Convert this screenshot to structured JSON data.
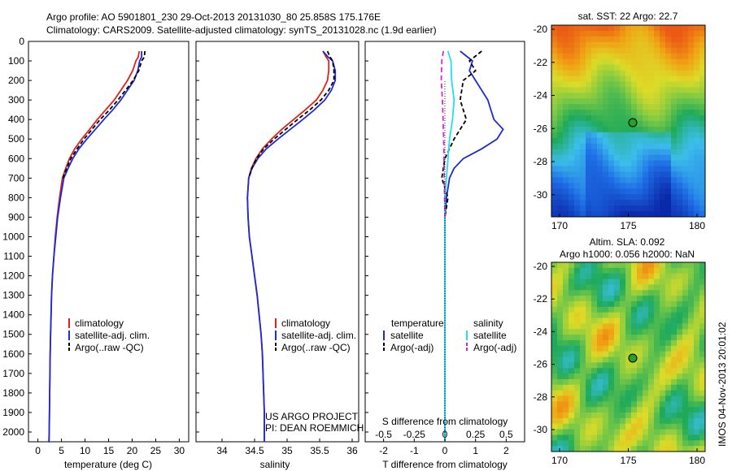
{
  "header": {
    "line1": "Argo profile: AO 5901801_230 29-Oct-2013 20131030_80 25.858S 175.176E",
    "line2": "Climatology: CARS2009. Satellite-adjusted climatology: synTS_20131028.nc (1.9d earlier)"
  },
  "colors": {
    "clim": "#e0201c",
    "sat": "#1c2bd6",
    "argo": "#000000",
    "sat_s": "#20e0e8",
    "argo_s": "#e020e0"
  },
  "depth_ticks": [
    "0",
    "100",
    "200",
    "300",
    "400",
    "500",
    "600",
    "700",
    "800",
    "900",
    "1000",
    "1100",
    "1200",
    "1300",
    "1400",
    "1500",
    "1600",
    "1700",
    "1800",
    "1900",
    "2000"
  ],
  "panels": {
    "temperature": {
      "xlabel": "temperature (deg C)",
      "xticks": [
        "0",
        "5",
        "10",
        "15",
        "20",
        "25",
        "30"
      ],
      "legend": [
        "climatology",
        "satellite-adj. clim.",
        "Argo(..raw -QC)"
      ]
    },
    "salinity": {
      "xlabel": "salinity",
      "xticks": [
        "34",
        "34.5",
        "35",
        "35.5",
        "36"
      ],
      "legend": [
        "climatology",
        "satellite-adj. clim.",
        "Argo(..raw -QC)"
      ],
      "credit1": "US ARGO PROJECT",
      "credit2": "PI: DEAN ROEMMICH"
    },
    "difference": {
      "s_label": "S difference from climatology",
      "t_label": "T difference from climatology",
      "s_ticks": [
        "-0.5",
        "-0.25",
        "0",
        "0.25",
        "0.5"
      ],
      "t_ticks": [
        "-2",
        "-1",
        "0",
        "1",
        "2"
      ],
      "legend_t_title": "temperature",
      "legend_s_title": "salinity",
      "legend_t": [
        "satellite",
        "Argo(-adj)"
      ],
      "legend_s": [
        "satellite",
        "Argo(-adj)"
      ]
    }
  },
  "maps": {
    "sst_title": "sat. SST: 22  Argo: 22.7",
    "sla_title1": "Altim. SLA: 0.092",
    "sla_title2": "Argo h1000: 0.056 h2000: NaN",
    "yticks": [
      "-20",
      "-22",
      "-24",
      "-26",
      "-28",
      "-30"
    ],
    "xticks": [
      "170",
      "175",
      "180"
    ],
    "watermark": "IMOS 04-Nov-2013 20:01:02"
  },
  "chart_data": [
    {
      "type": "line",
      "name": "temperature profile",
      "xlabel": "temperature (deg C)",
      "ylabel": "",
      "xlim": [
        -2,
        32
      ],
      "ylim": [
        2050,
        0
      ],
      "series": [
        {
          "name": "climatology",
          "x": [
            21.5,
            21.3,
            20.8,
            20.1,
            19.0,
            17.6,
            16.2,
            14.4,
            12.6,
            11.0,
            9.3,
            7.8,
            6.7,
            5.9,
            5.2,
            4.6,
            4.1,
            3.7,
            3.4,
            3.1,
            2.9,
            2.8,
            2.7,
            2.6,
            2.55,
            2.5,
            2.45,
            2.4,
            2.35,
            2.3
          ],
          "y": [
            50,
            80,
            100,
            150,
            200,
            250,
            300,
            350,
            400,
            450,
            500,
            550,
            600,
            650,
            700,
            800,
            900,
            1000,
            1100,
            1200,
            1300,
            1400,
            1500,
            1600,
            1700,
            1800,
            1900,
            2000,
            2050,
            2050
          ]
        },
        {
          "name": "satellite-adj. clim.",
          "x": [
            22.0,
            22.0,
            21.6,
            21.2,
            20.4,
            19.0,
            17.6,
            15.9,
            14.0,
            12.2,
            10.4,
            8.7,
            7.4,
            6.4,
            5.5,
            4.8,
            4.2,
            3.8,
            3.4,
            3.1,
            2.9,
            2.8,
            2.7,
            2.6,
            2.55,
            2.5,
            2.45,
            2.4,
            2.35,
            2.3
          ],
          "y": [
            50,
            80,
            100,
            150,
            200,
            250,
            300,
            350,
            400,
            450,
            500,
            550,
            600,
            650,
            700,
            800,
            900,
            1000,
            1100,
            1200,
            1300,
            1400,
            1500,
            1600,
            1700,
            1800,
            1900,
            2000,
            2050,
            2050
          ]
        },
        {
          "name": "Argo(..raw -QC)",
          "x": [
            22.7,
            22.6,
            22.0,
            21.4,
            20.2,
            18.6,
            17.0,
            15.2,
            13.2,
            11.5,
            9.8,
            8.3,
            7.0,
            6.1,
            5.3
          ],
          "y": [
            50,
            80,
            100,
            150,
            200,
            250,
            300,
            350,
            400,
            450,
            500,
            550,
            600,
            650,
            700
          ]
        }
      ]
    },
    {
      "type": "line",
      "name": "salinity profile",
      "xlabel": "salinity",
      "xlim": [
        33.6,
        36.1
      ],
      "ylim": [
        2050,
        0
      ],
      "series": [
        {
          "name": "climatology",
          "x": [
            35.55,
            35.6,
            35.64,
            35.64,
            35.62,
            35.55,
            35.45,
            35.28,
            35.1,
            34.92,
            34.76,
            34.62,
            34.52,
            34.45,
            34.41,
            34.39,
            34.4,
            34.42,
            34.46,
            34.5,
            34.54,
            34.57,
            34.6,
            34.62,
            34.63,
            34.64,
            34.65,
            34.65
          ],
          "y": [
            50,
            80,
            100,
            150,
            200,
            250,
            300,
            350,
            400,
            450,
            500,
            550,
            600,
            650,
            700,
            800,
            900,
            1000,
            1100,
            1200,
            1300,
            1400,
            1500,
            1600,
            1700,
            1800,
            1900,
            2050
          ]
        },
        {
          "name": "satellite-adj. clim.",
          "x": [
            35.55,
            35.63,
            35.7,
            35.74,
            35.74,
            35.68,
            35.58,
            35.42,
            35.24,
            35.05,
            34.86,
            34.68,
            34.55,
            34.46,
            34.41,
            34.39,
            34.4,
            34.42,
            34.46,
            34.5,
            34.54,
            34.57,
            34.6,
            34.62,
            34.63,
            34.64,
            34.65,
            34.65
          ],
          "y": [
            50,
            80,
            100,
            150,
            200,
            250,
            300,
            350,
            400,
            450,
            500,
            550,
            600,
            650,
            700,
            800,
            900,
            1000,
            1100,
            1200,
            1300,
            1400,
            1500,
            1600,
            1700,
            1800,
            1900,
            2050
          ]
        },
        {
          "name": "Argo(..raw -QC)",
          "x": [
            35.62,
            35.66,
            35.7,
            35.72,
            35.72,
            35.64,
            35.52,
            35.35,
            35.16,
            34.98,
            34.8,
            34.64,
            34.53,
            34.46,
            34.41
          ],
          "y": [
            50,
            80,
            100,
            150,
            200,
            250,
            300,
            350,
            400,
            450,
            500,
            550,
            600,
            650,
            700
          ]
        }
      ]
    },
    {
      "type": "line",
      "name": "difference from climatology",
      "xlabel": "T difference from climatology",
      "xlim": [
        -2.6,
        2.6
      ],
      "ylim": [
        2050,
        0
      ],
      "series": [
        {
          "name": "temperature satellite",
          "x": [
            0.5,
            0.9,
            0.8,
            1.0,
            1.4,
            1.5,
            1.6,
            1.9,
            1.7,
            1.2,
            0.6,
            0.3,
            0.15,
            0.05,
            0.0,
            0.0,
            0.0,
            0.0,
            0.0,
            0.0
          ],
          "y": [
            50,
            100,
            150,
            200,
            300,
            350,
            400,
            450,
            500,
            550,
            600,
            650,
            700,
            800,
            900,
            1000,
            1200,
            1400,
            1600,
            2050
          ]
        },
        {
          "name": "temperature Argo(-adj)",
          "x": [
            1.2,
            0.8,
            1.0,
            0.6,
            0.5,
            0.7,
            0.3,
            0.0,
            -0.1,
            0.1,
            0.0,
            0.0
          ],
          "y": [
            50,
            100,
            150,
            200,
            300,
            400,
            500,
            600,
            700,
            800,
            900,
            1000
          ]
        },
        {
          "name": "salinity satellite",
          "x": [
            0.1,
            0.2,
            0.22,
            0.3,
            0.25,
            0.15,
            0.1,
            0.05,
            0.0,
            0.0,
            0.0,
            0.0
          ],
          "y": [
            50,
            100,
            200,
            300,
            400,
            500,
            600,
            700,
            800,
            1000,
            1400,
            2050
          ]
        },
        {
          "name": "salinity Argo(-adj)",
          "x": [
            -0.05,
            -0.1,
            -0.12,
            -0.08,
            -0.04,
            -0.02,
            0.0
          ],
          "y": [
            50,
            100,
            200,
            300,
            500,
            700,
            900
          ]
        }
      ]
    }
  ]
}
